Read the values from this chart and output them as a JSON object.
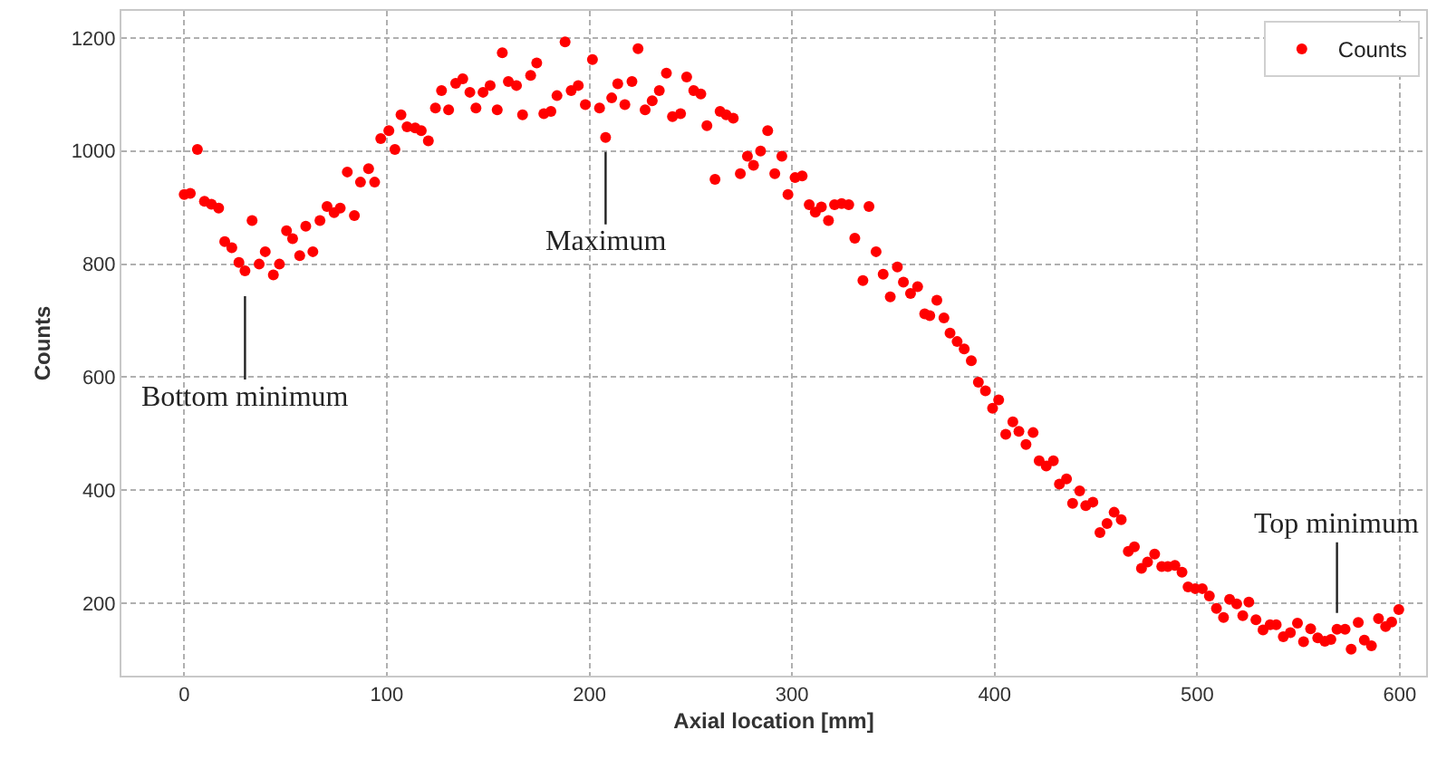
{
  "chart_data": {
    "type": "scatter",
    "xlabel": "Axial location [mm]",
    "ylabel": "Counts",
    "series": [
      {
        "name": "Counts",
        "color": "#ff0000",
        "x": [
          0,
          3,
          6.5,
          10,
          13.4,
          17,
          20,
          23.5,
          27,
          30,
          33.5,
          37,
          40,
          44,
          47,
          50.5,
          53.5,
          57,
          60,
          63.5,
          67,
          70.5,
          74,
          77,
          80.5,
          84,
          87,
          91,
          94,
          97,
          101,
          104,
          107,
          110,
          114,
          117,
          120.5,
          124,
          127,
          130.5,
          134,
          137.5,
          141,
          144,
          147.5,
          151,
          154.5,
          157,
          160,
          164,
          167,
          171,
          174,
          177.5,
          181,
          184,
          188,
          191,
          194.5,
          198,
          201.5,
          205,
          208,
          211,
          214,
          217.5,
          221,
          224,
          227.5,
          231,
          234.5,
          238,
          241,
          245,
          248,
          251.5,
          255,
          258,
          262,
          264.5,
          267.5,
          271,
          274.5,
          278,
          281,
          284.5,
          288,
          291.5,
          295,
          298,
          301.5,
          305,
          308.5,
          311.5,
          314.5,
          318,
          321,
          324.5,
          328,
          331,
          335,
          338,
          341.5,
          345,
          348.5,
          352,
          355,
          358.5,
          362,
          365.5,
          368,
          371.5,
          375,
          378,
          381.5,
          385,
          388.5,
          392,
          395.5,
          399,
          402,
          405.5,
          409,
          412,
          415.5,
          419,
          422,
          425.5,
          429,
          432,
          435.5,
          438.5,
          442,
          445,
          448.5,
          452,
          455.5,
          459,
          462.5,
          466,
          469,
          472.5,
          475.5,
          479,
          482.5,
          485.5,
          489,
          492.5,
          495.5,
          499,
          502.5,
          506,
          509.5,
          513,
          516,
          519.5,
          522.5,
          525.5,
          529,
          532.5,
          536,
          539,
          542.5,
          546,
          549.5,
          552.5,
          556,
          559.5,
          563,
          566,
          569,
          573,
          576,
          579.5,
          582.5,
          586,
          589.5,
          593,
          596,
          599.5
        ],
        "values": [
          923,
          925,
          1003,
          911,
          906,
          899,
          840,
          829,
          803,
          788,
          877,
          800,
          822,
          781,
          800,
          859,
          845,
          815,
          867,
          822,
          877,
          902,
          891,
          899,
          963,
          886,
          945,
          969,
          945,
          1022,
          1036,
          1003,
          1064,
          1043,
          1041,
          1036,
          1018,
          1076,
          1107,
          1073,
          1120,
          1128,
          1104,
          1076,
          1104,
          1116,
          1073,
          1174,
          1123,
          1116,
          1064,
          1134,
          1156,
          1066,
          1070,
          1098,
          1193,
          1107,
          1116,
          1082,
          1162,
          1076,
          1024,
          1094,
          1119,
          1082,
          1123,
          1181,
          1073,
          1089,
          1107,
          1138,
          1061,
          1066,
          1131,
          1107,
          1101,
          1045,
          950,
          1070,
          1064,
          1058,
          960,
          991,
          975,
          1000,
          1036,
          960,
          991,
          923,
          953,
          956,
          905,
          892,
          901,
          877,
          905,
          907,
          905,
          846,
          771,
          902,
          822,
          782,
          742,
          795,
          768,
          748,
          760,
          712,
          709,
          736,
          705,
          678,
          663,
          650,
          629,
          591,
          576,
          545,
          560,
          499,
          521,
          504,
          481,
          502,
          452,
          443,
          452,
          411,
          420,
          377,
          399,
          373,
          379,
          325,
          341,
          361,
          348,
          292,
          300,
          262,
          273,
          287,
          265,
          265,
          267,
          255,
          229,
          226,
          226,
          213,
          191,
          175,
          207,
          199,
          178,
          202,
          171,
          153,
          162,
          162,
          141,
          148,
          165,
          132,
          155,
          139,
          133,
          136,
          154,
          154,
          119,
          166,
          135,
          125,
          173,
          159,
          167,
          189
        ]
      }
    ],
    "marker": "circle",
    "legend": "top right",
    "grid": true,
    "line_style": "dashed",
    "xlim": [
      -31,
      613
    ],
    "xticks": [
      0,
      100,
      200,
      300,
      400,
      500,
      600
    ],
    "ylim": [
      72,
      1248
    ],
    "yticks": [
      200,
      400,
      600,
      800,
      1000,
      1200
    ],
    "annotations": [
      {
        "text": "Bottom minimum",
        "x": 30,
        "y": 788
      },
      {
        "text": "Maximum",
        "x": 208,
        "y": 1024
      },
      {
        "text": "Top minimum",
        "x": 569,
        "y": 154
      }
    ]
  }
}
